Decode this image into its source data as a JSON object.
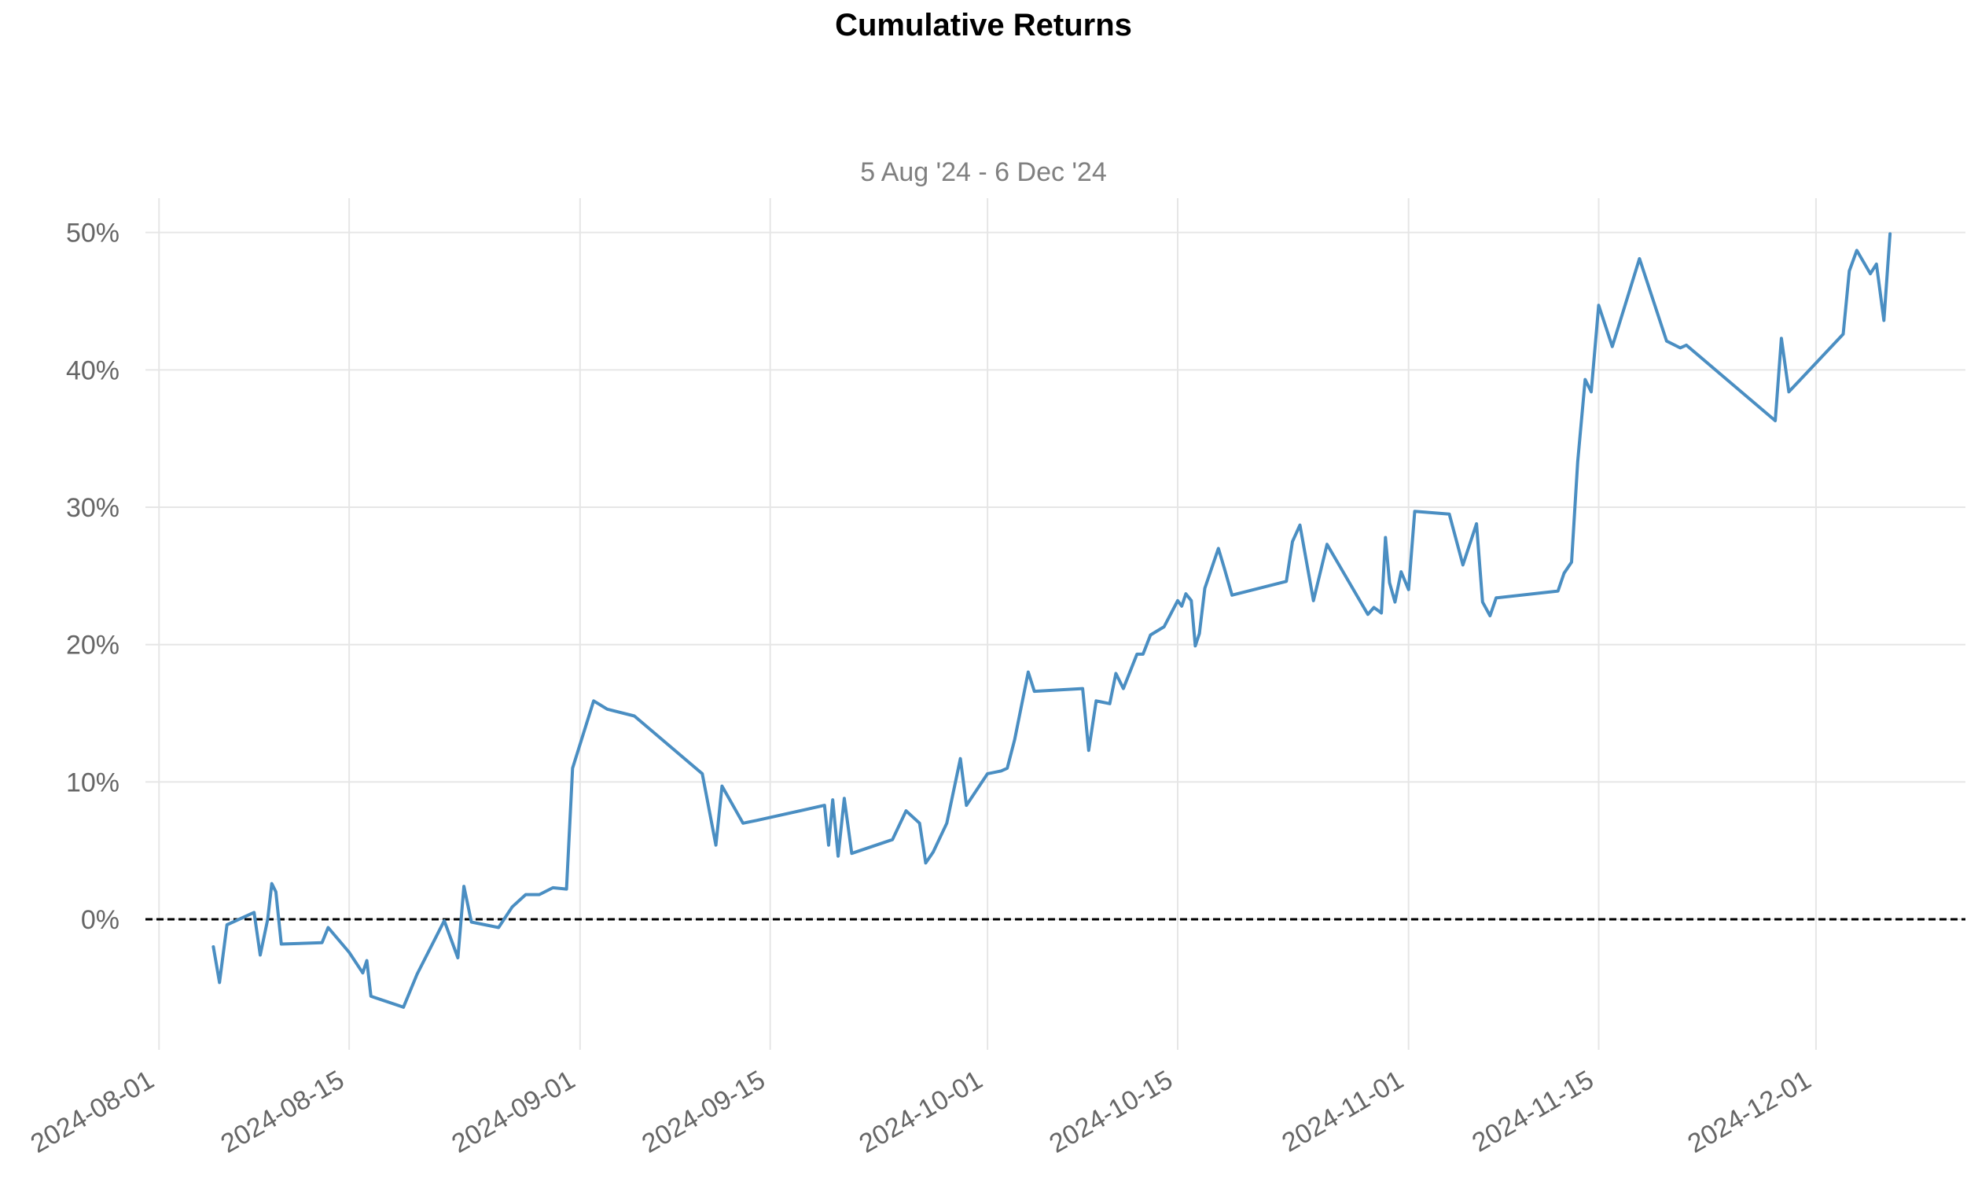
{
  "chart_data": {
    "type": "line",
    "title": "Cumulative Returns",
    "subtitle": "5 Aug '24 -  6 Dec '24",
    "xlabel": "",
    "ylabel": "",
    "grid": true,
    "legend": "none",
    "colors": {
      "series": "#4a8ec2",
      "zero_line": "#000000",
      "grid": "#e6e6e6",
      "tick_text": "#666666"
    },
    "x_ticks": [
      "2024-08-01",
      "2024-08-15",
      "2024-09-01",
      "2024-09-15",
      "2024-10-01",
      "2024-10-15",
      "2024-11-01",
      "2024-11-15",
      "2024-12-01"
    ],
    "y_ticks": [
      0,
      10,
      20,
      30,
      40,
      50
    ],
    "y_tick_labels": [
      "0%",
      "10%",
      "20%",
      "30%",
      "40%",
      "50%"
    ],
    "xlim": [
      "2024-07-31",
      "2024-12-12"
    ],
    "ylim": [
      -9.5,
      52.5
    ],
    "zero_line": 0,
    "series": [
      {
        "points": [
          [
            "2024-08-05",
            -2.0
          ],
          [
            "2024-08-05",
            -4.6
          ],
          [
            "2024-08-06",
            -0.4
          ],
          [
            "2024-08-08",
            0.5
          ],
          [
            "2024-08-08",
            -2.6
          ],
          [
            "2024-08-09",
            0.0
          ],
          [
            "2024-08-09",
            2.6
          ],
          [
            "2024-08-09",
            2.0
          ],
          [
            "2024-08-10",
            -1.8
          ],
          [
            "2024-08-13",
            -1.7
          ],
          [
            "2024-08-13",
            -0.6
          ],
          [
            "2024-08-15",
            -2.4
          ],
          [
            "2024-08-16",
            -3.9
          ],
          [
            "2024-08-16",
            -3.0
          ],
          [
            "2024-08-16",
            -5.6
          ],
          [
            "2024-08-19",
            -6.4
          ],
          [
            "2024-08-20",
            -4.0
          ],
          [
            "2024-08-22",
            -0.1
          ],
          [
            "2024-08-23",
            -2.8
          ],
          [
            "2024-08-23",
            2.4
          ],
          [
            "2024-08-24",
            -0.2
          ],
          [
            "2024-08-26",
            -0.6
          ],
          [
            "2024-08-27",
            0.9
          ],
          [
            "2024-08-28",
            1.8
          ],
          [
            "2024-08-29",
            1.8
          ],
          [
            "2024-08-30",
            2.3
          ],
          [
            "2024-08-31",
            2.2
          ],
          [
            "2024-08-31",
            11.0
          ],
          [
            "2024-09-02",
            15.9
          ],
          [
            "2024-09-03",
            15.3
          ],
          [
            "2024-09-05",
            14.8
          ],
          [
            "2024-09-10",
            10.6
          ],
          [
            "2024-09-11",
            5.4
          ],
          [
            "2024-09-11",
            9.7
          ],
          [
            "2024-09-13",
            7.0
          ],
          [
            "2024-09-14",
            7.2
          ],
          [
            "2024-09-19",
            8.3
          ],
          [
            "2024-09-19",
            5.4
          ],
          [
            "2024-09-19",
            8.7
          ],
          [
            "2024-09-20",
            4.6
          ],
          [
            "2024-09-20",
            8.8
          ],
          [
            "2024-09-21",
            4.8
          ],
          [
            "2024-09-24",
            5.8
          ],
          [
            "2024-09-25",
            7.9
          ],
          [
            "2024-09-26",
            7.0
          ],
          [
            "2024-09-26",
            4.1
          ],
          [
            "2024-09-27",
            4.9
          ],
          [
            "2024-09-28",
            7.0
          ],
          [
            "2024-09-29",
            11.7
          ],
          [
            "2024-09-29",
            8.3
          ],
          [
            "2024-10-01",
            10.6
          ],
          [
            "2024-10-02",
            10.8
          ],
          [
            "2024-10-02",
            11.0
          ],
          [
            "2024-10-03",
            13.1
          ],
          [
            "2024-10-04",
            18.0
          ],
          [
            "2024-10-04",
            16.6
          ],
          [
            "2024-10-08",
            16.8
          ],
          [
            "2024-10-08",
            12.3
          ],
          [
            "2024-10-09",
            15.9
          ],
          [
            "2024-10-10",
            15.7
          ],
          [
            "2024-10-10",
            17.9
          ],
          [
            "2024-10-11",
            16.8
          ],
          [
            "2024-10-12",
            19.3
          ],
          [
            "2024-10-12",
            19.3
          ],
          [
            "2024-10-13",
            20.7
          ],
          [
            "2024-10-14",
            21.3
          ],
          [
            "2024-10-15",
            23.2
          ],
          [
            "2024-10-15",
            22.8
          ],
          [
            "2024-10-15",
            23.7
          ],
          [
            "2024-10-16",
            23.2
          ],
          [
            "2024-10-16",
            19.9
          ],
          [
            "2024-10-16",
            20.8
          ],
          [
            "2024-10-17",
            24.1
          ],
          [
            "2024-10-18",
            27.0
          ],
          [
            "2024-10-18",
            25.5
          ],
          [
            "2024-10-19",
            23.6
          ],
          [
            "2024-10-23",
            24.6
          ],
          [
            "2024-10-23",
            27.5
          ],
          [
            "2024-10-24",
            28.7
          ],
          [
            "2024-10-25",
            23.2
          ],
          [
            "2024-10-26",
            27.3
          ],
          [
            "2024-10-29",
            22.2
          ],
          [
            "2024-10-29",
            22.7
          ],
          [
            "2024-10-30",
            22.3
          ],
          [
            "2024-10-30",
            27.8
          ],
          [
            "2024-10-30",
            24.5
          ],
          [
            "2024-10-31",
            23.1
          ],
          [
            "2024-10-31",
            25.3
          ],
          [
            "2024-11-01",
            24.0
          ],
          [
            "2024-11-01",
            29.7
          ],
          [
            "2024-11-04",
            29.5
          ],
          [
            "2024-11-05",
            25.8
          ],
          [
            "2024-11-06",
            28.8
          ],
          [
            "2024-11-06",
            23.1
          ],
          [
            "2024-11-07",
            22.1
          ],
          [
            "2024-11-07",
            23.4
          ],
          [
            "2024-11-12",
            23.9
          ],
          [
            "2024-11-12",
            25.2
          ],
          [
            "2024-11-13",
            26.0
          ],
          [
            "2024-11-13",
            33.3
          ],
          [
            "2024-11-14",
            39.3
          ],
          [
            "2024-11-14",
            38.4
          ],
          [
            "2024-11-15",
            44.7
          ],
          [
            "2024-11-16",
            41.7
          ],
          [
            "2024-11-18",
            48.1
          ],
          [
            "2024-11-20",
            42.1
          ],
          [
            "2024-11-21",
            41.6
          ],
          [
            "2024-11-21",
            41.8
          ],
          [
            "2024-11-28",
            36.3
          ],
          [
            "2024-11-28",
            42.3
          ],
          [
            "2024-11-29",
            38.4
          ],
          [
            "2024-12-03",
            42.6
          ],
          [
            "2024-12-03",
            47.2
          ],
          [
            "2024-12-04",
            48.7
          ],
          [
            "2024-12-05",
            47.0
          ],
          [
            "2024-12-05",
            47.7
          ],
          [
            "2024-12-06",
            43.6
          ],
          [
            "2024-12-06",
            49.9
          ]
        ]
      }
    ]
  }
}
